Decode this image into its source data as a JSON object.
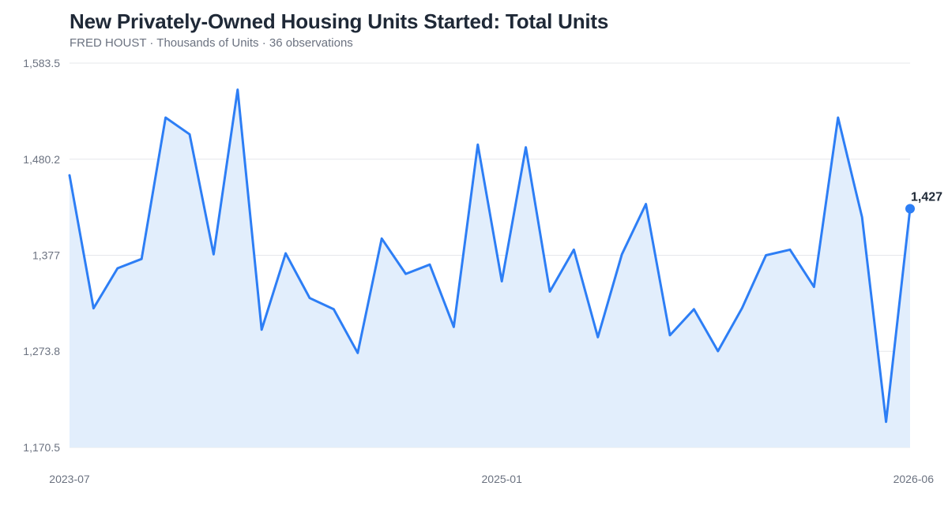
{
  "title": "New Privately-Owned Housing Units Started: Total Units",
  "subtitle": {
    "source": "FRED HOUST",
    "units": "Thousands of Units",
    "observations": "36 observations",
    "separator": " · "
  },
  "colors": {
    "line": "#2d7ef5",
    "area": "#e2eefc",
    "grid": "#e5e7eb"
  },
  "chart_data": {
    "type": "area",
    "title": "New Privately-Owned Housing Units Started: Total Units",
    "ylabel": "Thousands of Units",
    "ylim": [
      1170.5,
      1583.5
    ],
    "yticks": [
      1170.5,
      1273.8,
      1377,
      1480.2,
      1583.5
    ],
    "ytick_labels": [
      "1,170.5",
      "1,273.8",
      "1,377",
      "1,480.2",
      "1,583.5"
    ],
    "x": [
      "2023-07",
      "2023-08",
      "2023-09",
      "2023-10",
      "2023-11",
      "2023-12",
      "2024-01",
      "2024-02",
      "2024-03",
      "2024-04",
      "2024-05",
      "2024-06",
      "2024-07",
      "2024-08",
      "2024-09",
      "2024-10",
      "2024-11",
      "2024-12",
      "2025-01",
      "2025-02",
      "2025-03",
      "2025-04",
      "2025-05",
      "2025-06",
      "2025-07",
      "2025-08",
      "2025-09",
      "2025-10",
      "2025-11",
      "2025-12",
      "2026-01",
      "2026-02",
      "2026-03",
      "2026-04",
      "2026-05",
      "2026-06"
    ],
    "xtick_labels": [
      "2023-07",
      "2025-01",
      "2026-06"
    ],
    "series": [
      {
        "values": [
          1463,
          1320,
          1363,
          1373,
          1525,
          1507,
          1378,
          1555,
          1297,
          1379,
          1331,
          1319,
          1272,
          1395,
          1357,
          1367,
          1300,
          1496,
          1349,
          1493,
          1338,
          1383,
          1289,
          1378,
          1432,
          1291,
          1319,
          1274,
          1320,
          1377,
          1383,
          1343,
          1525,
          1418,
          1198,
          1427
        ]
      }
    ],
    "end_label": "1,427",
    "grid": true,
    "legend": "none"
  }
}
